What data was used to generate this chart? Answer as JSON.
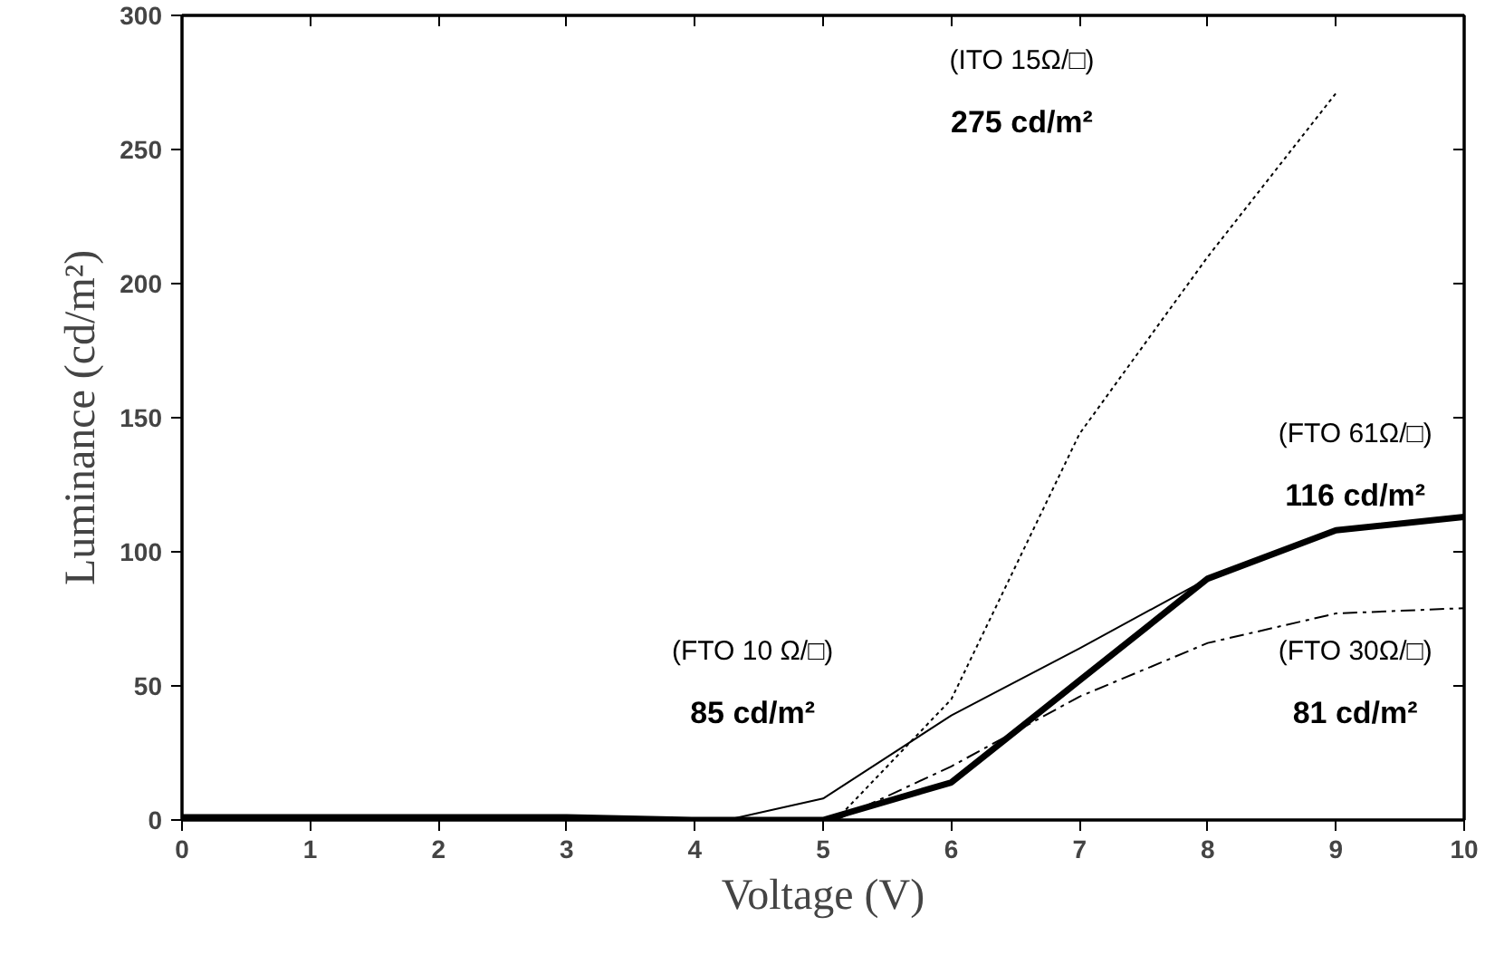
{
  "chart_data": {
    "type": "line",
    "xlabel": "Voltage (V)",
    "ylabel": "Luminance (cd/m²)",
    "xlim": [
      0,
      10
    ],
    "ylim": [
      0,
      300
    ],
    "xticks": [
      0,
      1,
      2,
      3,
      4,
      5,
      6,
      7,
      8,
      9,
      10
    ],
    "yticks": [
      0,
      50,
      100,
      150,
      200,
      250,
      300
    ],
    "grid": false,
    "marker": "none",
    "series": [
      {
        "color": "#000000",
        "line_style": "dotted",
        "x": [
          5.1,
          6,
          7,
          8,
          9
        ],
        "values": [
          0,
          45,
          144,
          210,
          271
        ]
      },
      {
        "color": "#000000",
        "line_style": "solid",
        "x": [
          0,
          1,
          2,
          3,
          4,
          5,
          6,
          7,
          8,
          9,
          10
        ],
        "values": [
          1,
          1,
          1,
          1,
          0,
          0,
          14,
          52,
          90,
          108,
          113
        ]
      },
      {
        "color": "#000000",
        "line_style": "dashdot",
        "x": [
          5.1,
          6,
          7,
          8,
          9,
          10
        ],
        "values": [
          0,
          20,
          46,
          66,
          77,
          79
        ]
      },
      {
        "color": "#000000",
        "line_style": "solid",
        "x": [
          4.25,
          5,
          6,
          7,
          8
        ],
        "values": [
          0,
          8,
          39,
          64,
          90
        ]
      }
    ],
    "annotations": [
      "(ITO 15Ω/□)",
      "275 cd/m²",
      "(FTO 61Ω/□)",
      "116 cd/m²",
      "(FTO 30Ω/□)",
      "81 cd/m²",
      "(FTO 10 Ω/□)",
      "85 cd/m²"
    ]
  }
}
